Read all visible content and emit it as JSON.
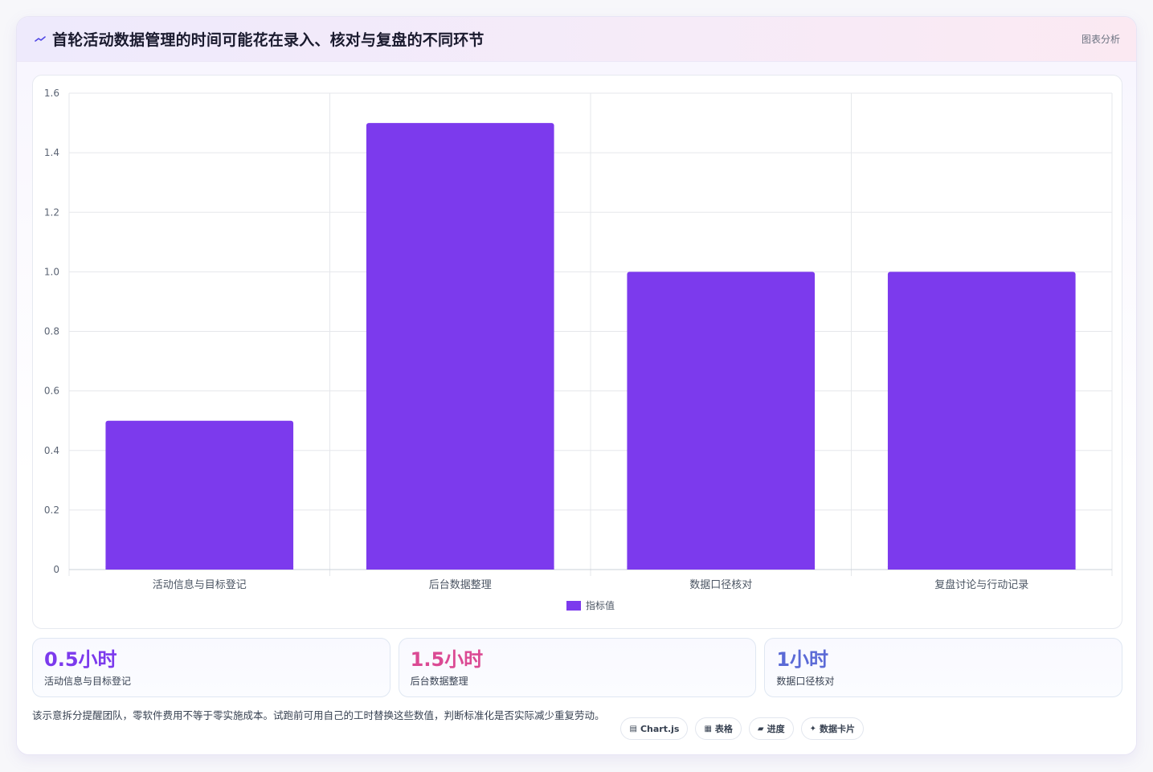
{
  "header": {
    "title": "首轮活动数据管理的时间可能花在录入、核对与复盘的不同环节",
    "tag": "图表分析",
    "icon": "sparkline-icon"
  },
  "chart_data": {
    "type": "bar",
    "categories": [
      "活动信息与目标登记",
      "后台数据整理",
      "数据口径核对",
      "复盘讨论与行动记录"
    ],
    "series": [
      {
        "name": "指标值",
        "values": [
          0.5,
          1.5,
          1.0,
          1.0
        ],
        "color": "#7c3aed"
      }
    ],
    "ylim": [
      0,
      1.6
    ],
    "yticks": [
      "0",
      "0.2",
      "0.4",
      "0.6",
      "0.8",
      "1.0",
      "1.2",
      "1.4",
      "1.6"
    ],
    "grid": true,
    "legend": "bottom"
  },
  "stats": [
    {
      "value": "0.5小时",
      "label": "活动信息与目标登记",
      "color": "#7c3aed"
    },
    {
      "value": "1.5小时",
      "label": "后台数据整理",
      "color": "#db4a93"
    },
    {
      "value": "1小时",
      "label": "数据口径核对",
      "color": "#5b6ad6"
    }
  ],
  "footer": {
    "note": "该示意拆分提醒团队，零软件费用不等于零实施成本。试跑前可用自己的工时替换这些数值，判断标准化是否实际减少重复劳动。",
    "chips": [
      {
        "icon": "▤",
        "icon_name": "chart-icon",
        "label": "Chart.js"
      },
      {
        "icon": "▦",
        "icon_name": "table-icon",
        "label": "表格"
      },
      {
        "icon": "▰",
        "icon_name": "progress-icon",
        "label": "进度"
      },
      {
        "icon": "✦",
        "icon_name": "sparkle-icon",
        "label": "数据卡片"
      }
    ]
  }
}
